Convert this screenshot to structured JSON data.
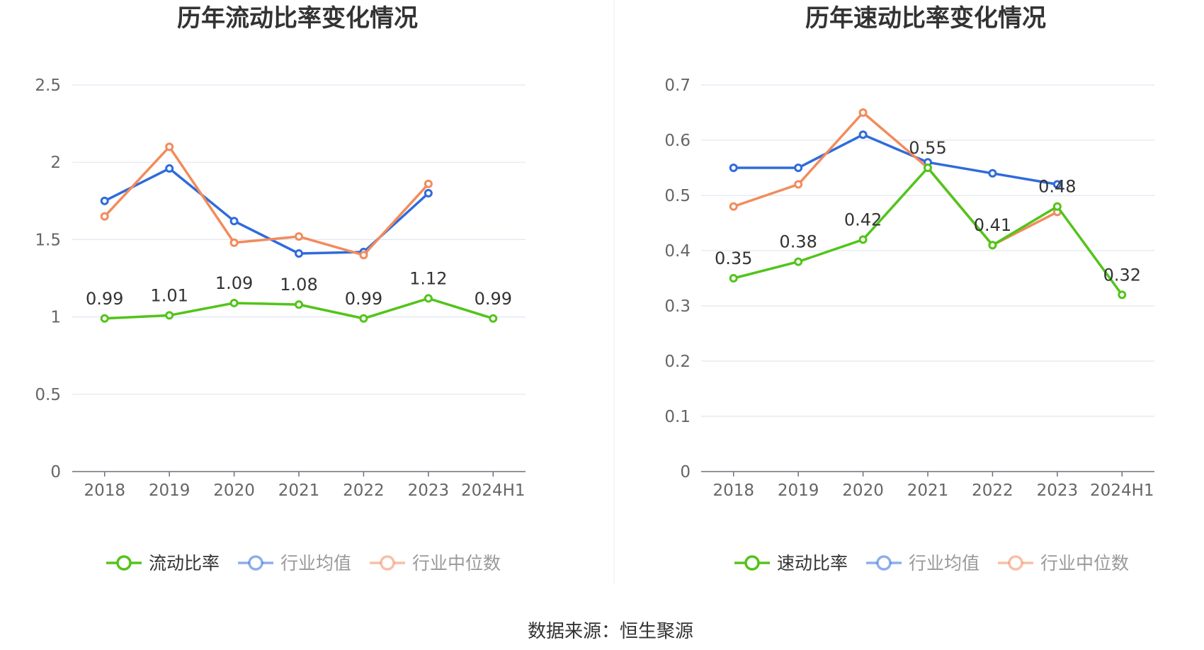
{
  "source": "数据来源：恒生聚源",
  "chart_data": [
    {
      "type": "line",
      "title": "历年流动比率变化情况",
      "categories": [
        "2018",
        "2019",
        "2020",
        "2021",
        "2022",
        "2023",
        "2024H1"
      ],
      "ylim": [
        0,
        2.5
      ],
      "yticks": [
        "0",
        "0.5",
        "1",
        "1.5",
        "2",
        "2.5"
      ],
      "grid": true,
      "legend_position": "bottom-center",
      "series": [
        {
          "name": "流动比率",
          "color": "#52c41a",
          "values": [
            0.99,
            1.01,
            1.09,
            1.08,
            0.99,
            1.12,
            0.99
          ],
          "labels": [
            "0.99",
            "1.01",
            "1.09",
            "1.08",
            "0.99",
            "1.12",
            "0.99"
          ],
          "active": true
        },
        {
          "name": "行业均值",
          "color": "#2f6bdb",
          "values": [
            1.75,
            1.96,
            1.62,
            1.41,
            1.42,
            1.8,
            null
          ],
          "active": false
        },
        {
          "name": "行业中位数",
          "color": "#f28b5c",
          "values": [
            1.65,
            2.1,
            1.48,
            1.52,
            1.4,
            1.86,
            null
          ],
          "active": false
        }
      ]
    },
    {
      "type": "line",
      "title": "历年速动比率变化情况",
      "categories": [
        "2018",
        "2019",
        "2020",
        "2021",
        "2022",
        "2023",
        "2024H1"
      ],
      "ylim": [
        0,
        0.7
      ],
      "yticks": [
        "0",
        "0.1",
        "0.2",
        "0.3",
        "0.4",
        "0.5",
        "0.6",
        "0.7"
      ],
      "grid": true,
      "legend_position": "bottom-center",
      "series": [
        {
          "name": "速动比率",
          "color": "#52c41a",
          "values": [
            0.35,
            0.38,
            0.42,
            0.55,
            0.41,
            0.48,
            0.32
          ],
          "labels": [
            "0.35",
            "0.38",
            "0.42",
            "0.55",
            "0.41",
            "0.48",
            "0.32"
          ],
          "active": true
        },
        {
          "name": "行业均值",
          "color": "#2f6bdb",
          "values": [
            0.55,
            0.55,
            0.61,
            0.56,
            0.54,
            0.52,
            null
          ],
          "active": false
        },
        {
          "name": "行业中位数",
          "color": "#f28b5c",
          "values": [
            0.48,
            0.52,
            0.65,
            0.55,
            0.41,
            0.47,
            null
          ],
          "active": false
        }
      ]
    }
  ]
}
